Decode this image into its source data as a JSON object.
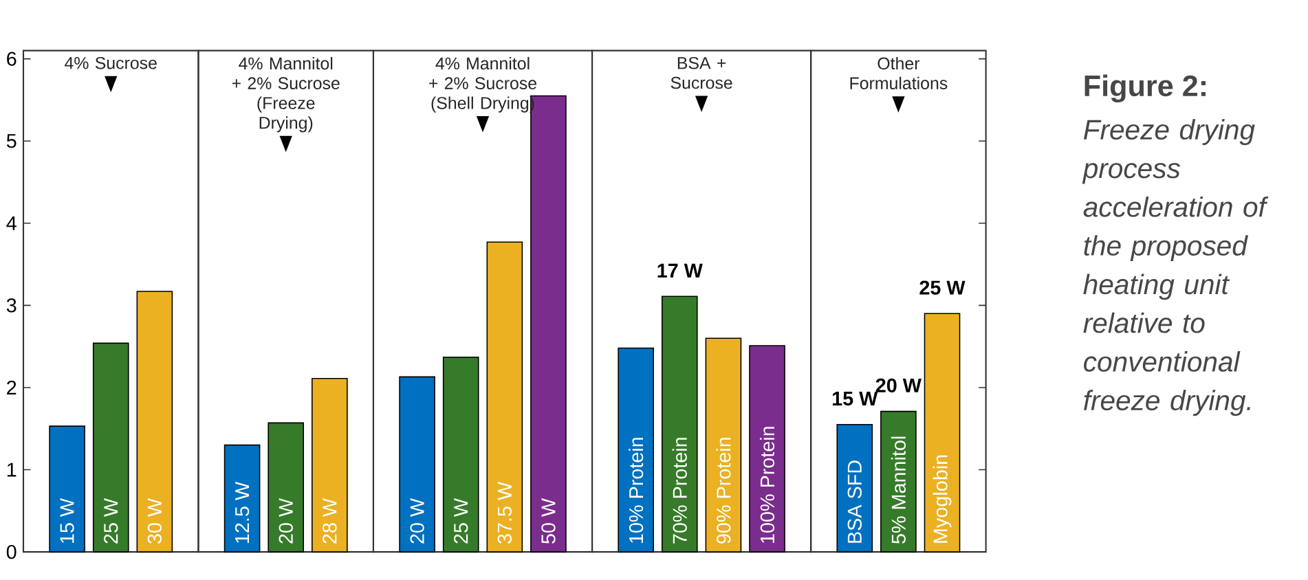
{
  "chart_data": [
    {
      "type": "bar",
      "title": "4% Sucrose",
      "categories": [
        "15 W",
        "25 W",
        "30 W"
      ],
      "values": [
        1.53,
        2.54,
        3.17
      ],
      "colors": [
        "#0070c0",
        "#367b2a",
        "#ebb123"
      ],
      "ylim": [
        0,
        6.1
      ],
      "yticks": [
        0,
        1,
        2,
        3,
        4,
        5,
        6
      ]
    },
    {
      "type": "bar",
      "title": "4% Mannitol + 2% Sucrose (Freeze Drying)",
      "categories": [
        "12.5 W",
        "20 W",
        "28 W"
      ],
      "values": [
        1.3,
        1.57,
        2.11
      ],
      "colors": [
        "#0070c0",
        "#367b2a",
        "#ebb123"
      ],
      "ylim": [
        0,
        6.1
      ],
      "yticks": [
        0,
        1,
        2,
        3,
        4,
        5,
        6
      ],
      "tick_labels": "x"
    },
    {
      "type": "bar",
      "title": "4% Mannitol + 2% Sucrose (Shell Drying)",
      "categories": [
        "20 W",
        "25 W",
        "37.5 W",
        "50 W"
      ],
      "values": [
        2.13,
        2.37,
        3.77,
        5.55
      ],
      "colors": [
        "#0070c0",
        "#367b2a",
        "#ebb123",
        "#7b2d8e"
      ],
      "ylim": [
        0,
        6.1
      ],
      "yticks": [
        0,
        1,
        2,
        3,
        4,
        5,
        6
      ],
      "tick_labels": "x"
    },
    {
      "type": "bar",
      "title": "BSA + Sucrose",
      "categories": [
        "10% Protein",
        "70% Protein",
        "90% Protein",
        "100% Protein"
      ],
      "values": [
        2.48,
        3.11,
        2.6,
        2.51
      ],
      "colors": [
        "#0070c0",
        "#367b2a",
        "#ebb123",
        "#7b2d8e"
      ],
      "ylim": [
        0,
        6.1
      ],
      "yticks": [
        0,
        1,
        2,
        3,
        4,
        5,
        6
      ],
      "tick_labels": "x",
      "annotations": [
        {
          "text": "17 W",
          "x": "70% Protein",
          "y": 3.11
        }
      ]
    },
    {
      "type": "bar",
      "title": "Other Formulations",
      "categories": [
        "BSA SFD",
        "5% Mannitol",
        "Myoglobin"
      ],
      "values": [
        1.55,
        1.71,
        2.9
      ],
      "colors": [
        "#0070c0",
        "#367b2a",
        "#ebb123"
      ],
      "ylim": [
        0,
        6.1
      ],
      "yticks": [
        0,
        1,
        2,
        3,
        4,
        5,
        6
      ],
      "tick_labels": "x",
      "annotations": [
        {
          "text": "15 W",
          "x": "BSA SFD",
          "y": 1.55
        },
        {
          "text": "20 W",
          "x": "5% Mannitol",
          "y": 1.71
        },
        {
          "text": "25 W",
          "x": "Myoglobin",
          "y": 2.9
        }
      ]
    },
    {
      "type": "other",
      "title": "Figure 2:",
      "annotations": [
        "Freeze drying process acceleration of the proposed heating unit relative to conventional freeze drying."
      ]
    }
  ]
}
